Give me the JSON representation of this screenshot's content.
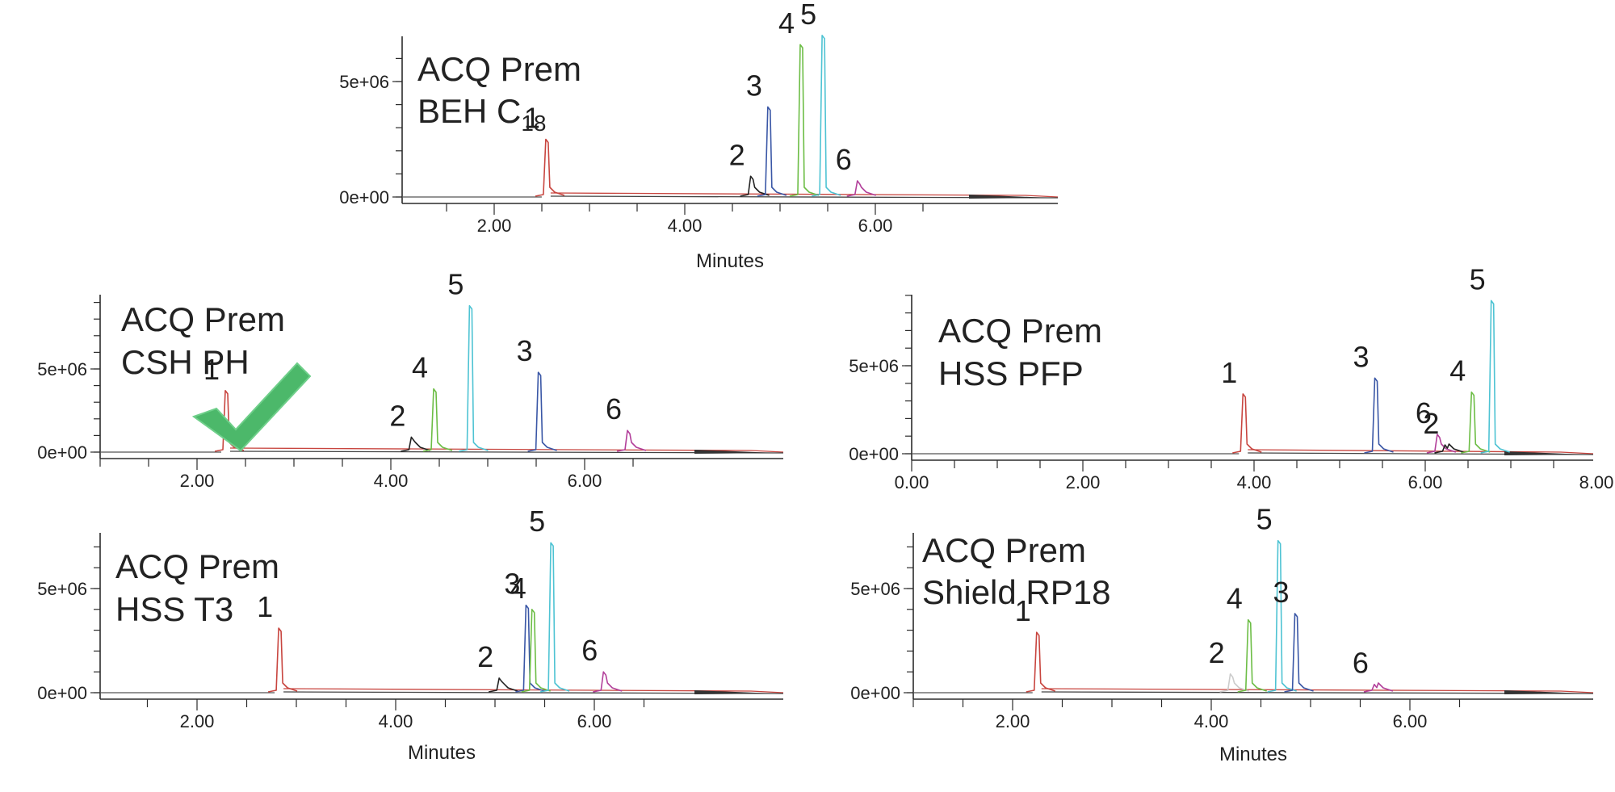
{
  "chart_data": [
    {
      "type": "line",
      "title_lines": [
        "ACQ Prem",
        "BEH C",
        "18"
      ],
      "xlabel": "Minutes",
      "xlim": [
        0,
        6.9
      ],
      "ylim": [
        -700000,
        7200000
      ],
      "xticks": [
        "2.00",
        "4.00",
        "6.00"
      ],
      "yticks": [
        "0e+00",
        "5e+06"
      ],
      "peaks": [
        {
          "name": "1",
          "x": 2.55,
          "y": 2500000,
          "color": "#c8453f"
        },
        {
          "name": "2",
          "x": 4.7,
          "y": 900000,
          "color": "#222222"
        },
        {
          "name": "3",
          "x": 4.88,
          "y": 3900000,
          "color": "#3a57a6"
        },
        {
          "name": "4",
          "x": 5.22,
          "y": 6600000,
          "color": "#6cbd45"
        },
        {
          "name": "5",
          "x": 5.45,
          "y": 7000000,
          "color": "#4ec3d3"
        },
        {
          "name": "6",
          "x": 5.82,
          "y": 700000,
          "color": "#b23f9a"
        }
      ]
    },
    {
      "type": "line",
      "title_lines": [
        "ACQ Prem",
        "CSH PH"
      ],
      "xlabel": "",
      "xlim": [
        0,
        6.95
      ],
      "ylim": [
        -700000,
        9000000
      ],
      "xticks": [
        "2.00",
        "4.00",
        "6.00"
      ],
      "yticks": [
        "0e+00",
        "5e+06"
      ],
      "peaks": [
        {
          "name": "1",
          "x": 2.3,
          "y": 3700000,
          "color": "#c8453f"
        },
        {
          "name": "2",
          "x": 4.22,
          "y": 900000,
          "color": "#222222"
        },
        {
          "name": "4",
          "x": 4.45,
          "y": 3800000,
          "color": "#6cbd45"
        },
        {
          "name": "5",
          "x": 4.82,
          "y": 8800000,
          "color": "#4ec3d3"
        },
        {
          "name": "3",
          "x": 5.53,
          "y": 4800000,
          "color": "#3a57a6"
        },
        {
          "name": "6",
          "x": 6.45,
          "y": 1300000,
          "color": "#b23f9a"
        }
      ]
    },
    {
      "type": "line",
      "title_lines": [
        "ACQ Prem",
        "HSS PFP"
      ],
      "xlabel": "",
      "xlim": [
        0,
        8.05
      ],
      "ylim": [
        -700000,
        9000000
      ],
      "xticks": [
        "0.00",
        "2.00",
        "4.00",
        "6.00",
        "8.00"
      ],
      "yticks": [
        "0e+00",
        "5e+06"
      ],
      "peaks": [
        {
          "name": "1",
          "x": 3.88,
          "y": 3400000,
          "color": "#c8453f"
        },
        {
          "name": "3",
          "x": 5.42,
          "y": 4300000,
          "color": "#3a57a6"
        },
        {
          "name": "6",
          "x": 6.15,
          "y": 1100000,
          "color": "#b23f9a"
        },
        {
          "name": "2",
          "x": 6.24,
          "y": 500000,
          "color": "#222222"
        },
        {
          "name": "4",
          "x": 6.55,
          "y": 3500000,
          "color": "#6cbd45"
        },
        {
          "name": "5",
          "x": 6.78,
          "y": 8700000,
          "color": "#4ec3d3"
        }
      ]
    },
    {
      "type": "line",
      "title_lines": [
        "ACQ Prem",
        "HSS T3"
      ],
      "xlabel": "Minutes",
      "xlim": [
        0,
        6.9
      ],
      "ylim": [
        -700000,
        7500000
      ],
      "xticks": [
        "2.00",
        "4.00",
        "6.00"
      ],
      "yticks": [
        "0e+00",
        "5e+06"
      ],
      "peaks": [
        {
          "name": "1",
          "x": 2.83,
          "y": 3100000,
          "color": "#c8453f"
        },
        {
          "name": "2",
          "x": 5.05,
          "y": 700000,
          "color": "#222222"
        },
        {
          "name": "3",
          "x": 5.32,
          "y": 4200000,
          "color": "#3a57a6"
        },
        {
          "name": "4",
          "x": 5.38,
          "y": 4000000,
          "color": "#6cbd45"
        },
        {
          "name": "5",
          "x": 5.57,
          "y": 7200000,
          "color": "#4ec3d3"
        },
        {
          "name": "6",
          "x": 6.1,
          "y": 1000000,
          "color": "#b23f9a"
        }
      ]
    },
    {
      "type": "line",
      "title_lines": [
        "ACQ Prem",
        "Shield RP18"
      ],
      "xlabel": "Minutes",
      "xlim": [
        0,
        6.9
      ],
      "ylim": [
        -700000,
        7500000
      ],
      "xticks": [
        "2.00",
        "4.00",
        "6.00"
      ],
      "yticks": [
        "0e+00",
        "5e+06"
      ],
      "peaks": [
        {
          "name": "1",
          "x": 2.25,
          "y": 2900000,
          "color": "#c8453f"
        },
        {
          "name": "2",
          "x": 4.2,
          "y": 900000,
          "color": "#cccccc"
        },
        {
          "name": "4",
          "x": 4.38,
          "y": 3500000,
          "color": "#6cbd45"
        },
        {
          "name": "5",
          "x": 4.68,
          "y": 7300000,
          "color": "#4ec3d3"
        },
        {
          "name": "3",
          "x": 4.85,
          "y": 3800000,
          "color": "#3a57a6"
        },
        {
          "name": "6",
          "x": 5.65,
          "y": 400000,
          "color": "#b23f9a"
        }
      ]
    }
  ],
  "checkmark": {
    "color": "#4cb86a"
  }
}
